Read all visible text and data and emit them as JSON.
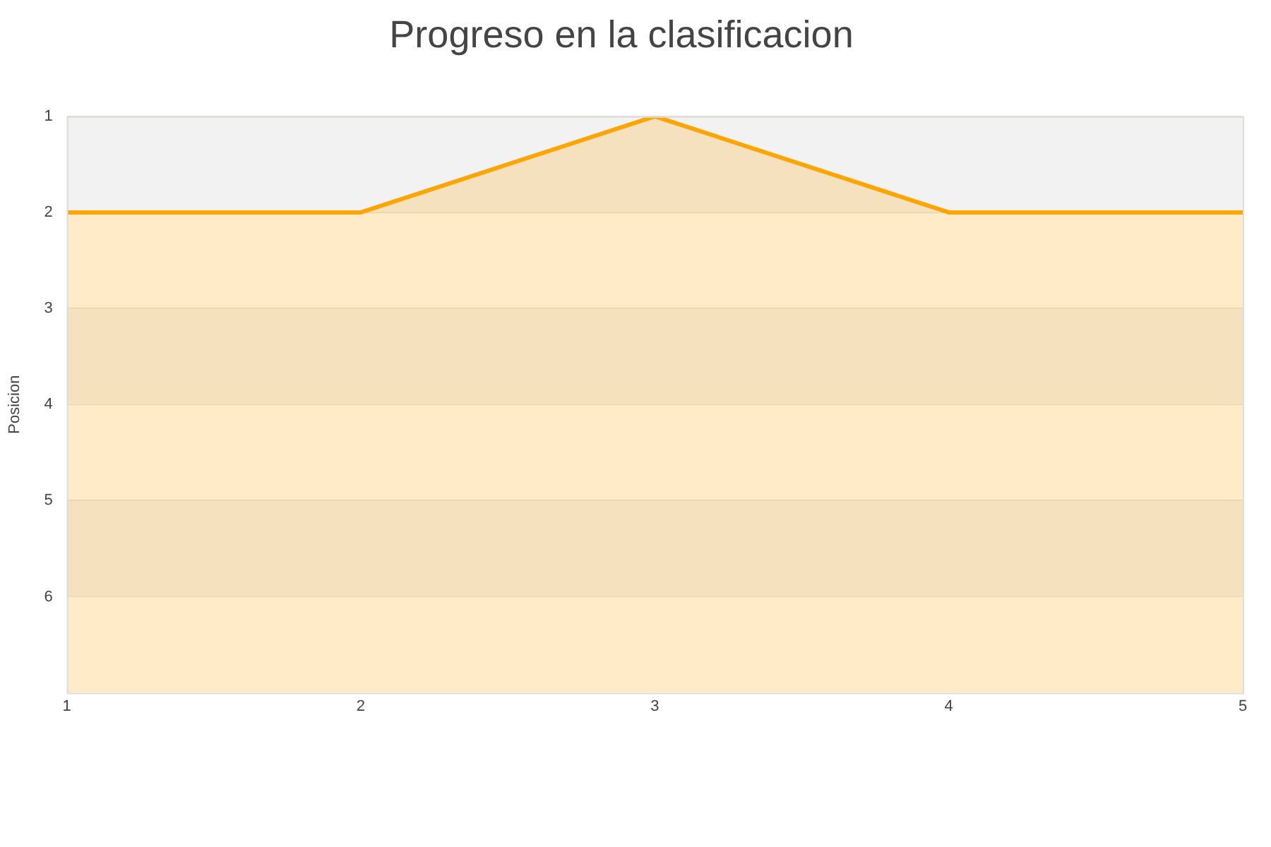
{
  "chart_data": {
    "type": "area",
    "title": "Progreso en la clasificacion",
    "ylabel": "Posicion",
    "x": [
      1,
      2,
      3,
      4,
      5
    ],
    "series": [
      {
        "color": "#ffa500",
        "values": [
          2,
          2,
          1,
          2,
          2
        ]
      }
    ],
    "xlim": [
      1,
      5
    ],
    "xticks": [
      1,
      2,
      3,
      4,
      5
    ],
    "ylim": [
      7,
      1
    ],
    "yticks": [
      1,
      2,
      3,
      4,
      5,
      6
    ],
    "grid": "y",
    "legend": false,
    "marker": "none"
  }
}
